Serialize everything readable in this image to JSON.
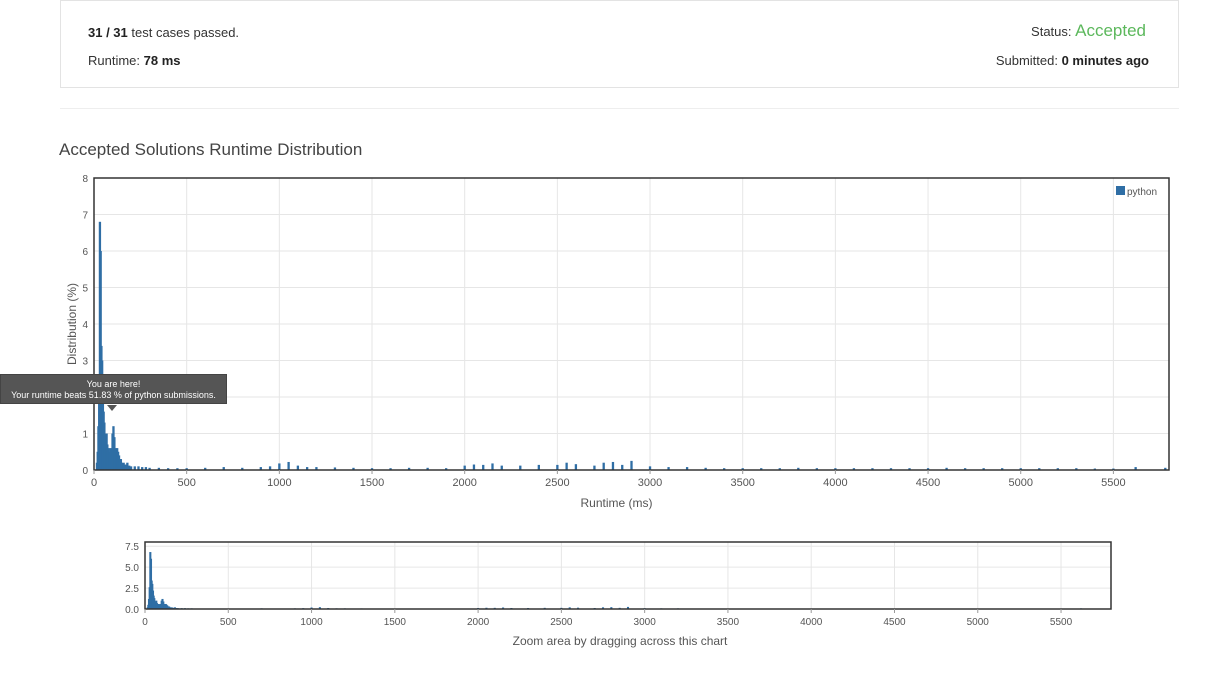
{
  "summary": {
    "tests_passed": "31 / 31",
    "tests_suffix": " test cases passed.",
    "runtime_label": "Runtime: ",
    "runtime_value": "78 ms",
    "status_label": "Status: ",
    "status_value": "Accepted",
    "submitted_label": "Submitted: ",
    "submitted_value": "0 minutes ago"
  },
  "section_title": "Accepted Solutions Runtime Distribution",
  "tooltip": {
    "line1": "You are here!",
    "line2": "Your runtime beats 51.83 % of python submissions."
  },
  "colors": {
    "bar": "#2f6ea5",
    "accepted": "#5cb85c",
    "grid": "#e6e6e6",
    "frame": "#333333"
  },
  "chart_data": [
    {
      "type": "bar",
      "title": "",
      "xlabel": "Runtime (ms)",
      "ylabel": "Distribution (%)",
      "xlim": [
        0,
        5800
      ],
      "ylim": [
        0,
        8
      ],
      "xticks": [
        0,
        500,
        1000,
        1500,
        2000,
        2500,
        3000,
        3500,
        4000,
        4500,
        5000,
        5500
      ],
      "yticks": [
        0,
        1,
        2,
        3,
        4,
        5,
        6,
        7,
        8
      ],
      "grid": true,
      "legend": "top-right",
      "series": [
        {
          "name": "python",
          "x": [
            16,
            20,
            24,
            28,
            32,
            36,
            40,
            44,
            48,
            52,
            56,
            60,
            64,
            68,
            72,
            76,
            80,
            84,
            88,
            92,
            96,
            100,
            105,
            110,
            115,
            120,
            125,
            130,
            135,
            140,
            145,
            150,
            160,
            170,
            180,
            190,
            200,
            220,
            240,
            260,
            280,
            300,
            350,
            400,
            450,
            500,
            600,
            700,
            800,
            900,
            950,
            1000,
            1050,
            1100,
            1150,
            1200,
            1300,
            1400,
            1500,
            1600,
            1700,
            1800,
            1900,
            2000,
            2050,
            2100,
            2150,
            2200,
            2300,
            2400,
            2500,
            2550,
            2600,
            2700,
            2750,
            2800,
            2850,
            2900,
            3000,
            3100,
            3200,
            3300,
            3400,
            3500,
            3600,
            3700,
            3800,
            3900,
            4000,
            4100,
            4200,
            4300,
            4400,
            4500,
            4600,
            4700,
            4800,
            4900,
            5000,
            5100,
            5200,
            5300,
            5400,
            5500,
            5620,
            5780
          ],
          "values": [
            0.2,
            0.5,
            1.2,
            2.6,
            6.8,
            6.0,
            3.4,
            3.0,
            2.2,
            1.6,
            1.3,
            0.9,
            0.8,
            1.0,
            0.7,
            0.5,
            0.6,
            0.5,
            0.4,
            0.6,
            0.4,
            1.0,
            1.2,
            0.9,
            0.6,
            0.5,
            0.6,
            0.5,
            0.4,
            0.3,
            0.3,
            0.2,
            0.2,
            0.15,
            0.2,
            0.12,
            0.1,
            0.1,
            0.1,
            0.08,
            0.08,
            0.06,
            0.06,
            0.05,
            0.05,
            0.05,
            0.06,
            0.08,
            0.06,
            0.08,
            0.1,
            0.18,
            0.22,
            0.12,
            0.08,
            0.08,
            0.07,
            0.06,
            0.05,
            0.05,
            0.06,
            0.06,
            0.05,
            0.12,
            0.15,
            0.14,
            0.18,
            0.12,
            0.12,
            0.14,
            0.14,
            0.2,
            0.16,
            0.12,
            0.2,
            0.22,
            0.14,
            0.25,
            0.1,
            0.08,
            0.08,
            0.06,
            0.05,
            0.05,
            0.05,
            0.05,
            0.06,
            0.05,
            0.05,
            0.05,
            0.05,
            0.05,
            0.05,
            0.05,
            0.06,
            0.05,
            0.05,
            0.05,
            0.05,
            0.05,
            0.05,
            0.05,
            0.04,
            0.04,
            0.08,
            0.06
          ]
        }
      ]
    },
    {
      "type": "bar",
      "title": "",
      "xlabel": "Zoom area by dragging across this chart",
      "ylabel": "",
      "xlim": [
        0,
        5800
      ],
      "ylim": [
        0,
        8
      ],
      "xticks": [
        0,
        500,
        1000,
        1500,
        2000,
        2500,
        3000,
        3500,
        4000,
        4500,
        5000,
        5500
      ],
      "yticks_labels": [
        "0.0",
        "2.5",
        "5.0",
        "7.5"
      ],
      "yticks": [
        0,
        2.5,
        5,
        7.5
      ],
      "grid": true
    }
  ]
}
